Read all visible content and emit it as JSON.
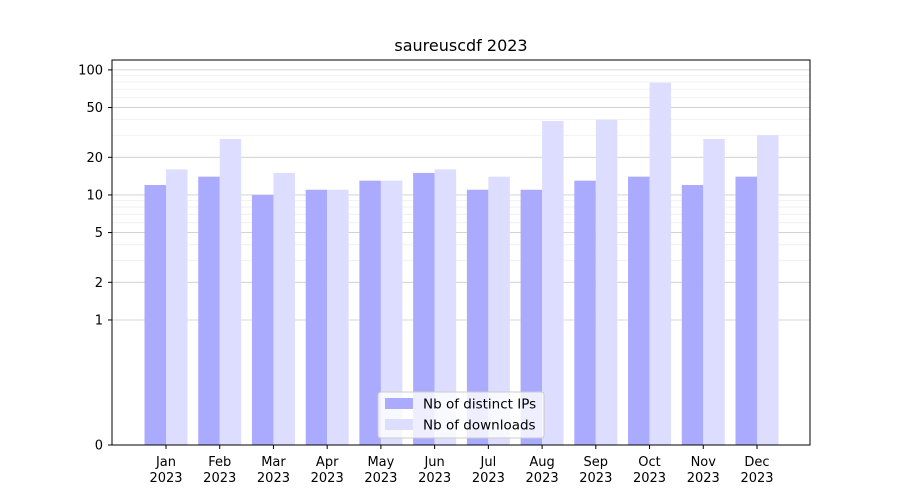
{
  "chart_data": {
    "type": "bar",
    "title": "saureuscdf 2023",
    "xlabel": "",
    "ylabel": "",
    "y_scale": "symlog",
    "ylim": [
      0,
      120
    ],
    "y_ticks": [
      0,
      1,
      2,
      5,
      10,
      20,
      50,
      100
    ],
    "categories": [
      "Jan\n2023",
      "Feb\n2023",
      "Mar\n2023",
      "Apr\n2023",
      "May\n2023",
      "Jun\n2023",
      "Jul\n2023",
      "Aug\n2023",
      "Sep\n2023",
      "Oct\n2023",
      "Nov\n2023",
      "Dec\n2023"
    ],
    "series": [
      {
        "name": "Nb of distinct IPs",
        "color": "#aaaaff",
        "values": [
          12,
          14,
          10,
          11,
          13,
          15,
          11,
          11,
          13,
          14,
          12,
          14
        ]
      },
      {
        "name": "Nb of downloads",
        "color": "#ddddff",
        "values": [
          16,
          28,
          15,
          11,
          13,
          16,
          14,
          39,
          40,
          79,
          28,
          30
        ]
      }
    ],
    "grid": true,
    "legend_position": "bottom-center"
  }
}
